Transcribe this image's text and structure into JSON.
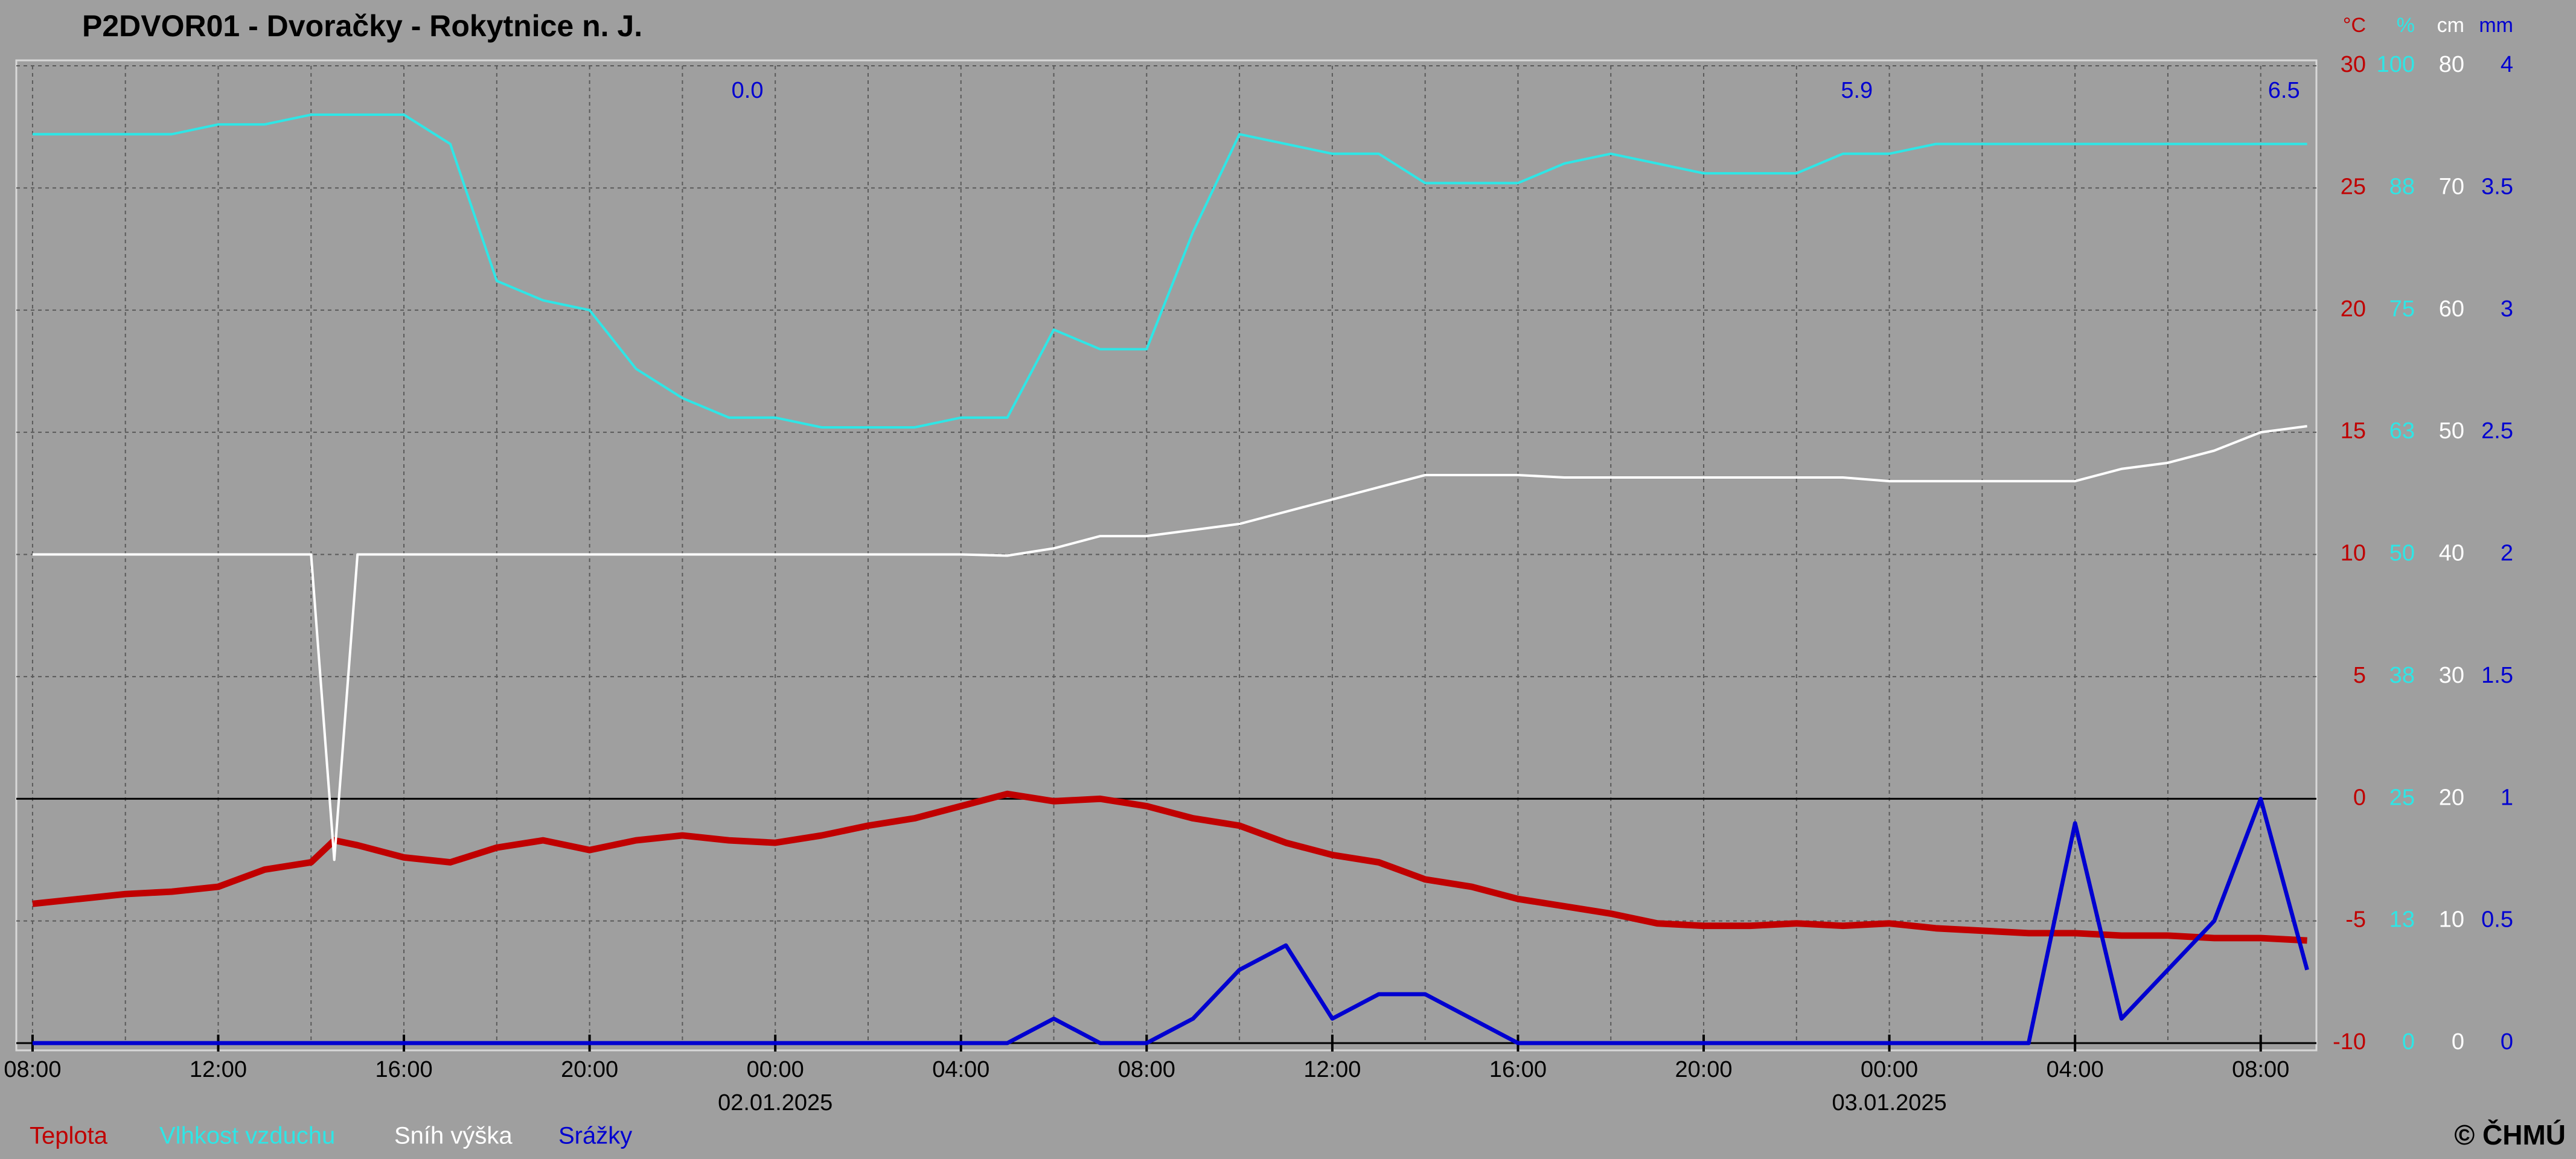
{
  "chart_data": {
    "type": "line",
    "title": "P2DVOR01 - Dvoračky - Rokytnice n. J.",
    "copyright": "© ČHMÚ",
    "x": [
      -16,
      -15,
      -14,
      -13,
      -12,
      -11,
      -10,
      -9.5,
      -9,
      -8,
      -7,
      -6,
      -5,
      -4,
      -3,
      -2,
      -1,
      0,
      1,
      2,
      3,
      4,
      5,
      6,
      7,
      8,
      9,
      10,
      11,
      12,
      13,
      14,
      15,
      16,
      17,
      18,
      19,
      20,
      21,
      22,
      23,
      24,
      25,
      26,
      27,
      28,
      29,
      30,
      31,
      32,
      33
    ],
    "xlim": [
      -16.35,
      33.2
    ],
    "xticks": [
      {
        "value": -16,
        "label": "08:00"
      },
      {
        "value": -12,
        "label": "12:00"
      },
      {
        "value": -8,
        "label": "16:00"
      },
      {
        "value": -4,
        "label": "20:00"
      },
      {
        "value": 0,
        "label": "00:00"
      },
      {
        "value": 4,
        "label": "04:00"
      },
      {
        "value": 8,
        "label": "08:00"
      },
      {
        "value": 12,
        "label": "12:00"
      },
      {
        "value": 16,
        "label": "16:00"
      },
      {
        "value": 20,
        "label": "20:00"
      },
      {
        "value": 24,
        "label": "00:00"
      },
      {
        "value": 28,
        "label": "04:00"
      },
      {
        "value": 32,
        "label": "08:00"
      }
    ],
    "xminorticks": [
      -14,
      -10,
      -6,
      -2,
      2,
      6,
      10,
      14,
      18,
      22,
      26,
      30
    ],
    "x_date_labels": [
      {
        "value": 0,
        "label": "02.01.2025"
      },
      {
        "value": 24,
        "label": "03.01.2025"
      }
    ],
    "grid": true,
    "y_axes": [
      {
        "unit": "°C",
        "lim": [
          -10,
          30
        ],
        "ticks": [
          -10,
          -5,
          0,
          5,
          10,
          15,
          20,
          25,
          30
        ]
      },
      {
        "unit": "%",
        "lim": [
          0,
          100
        ],
        "ticks": [
          0,
          {
            "value": 12.5,
            "label": "13"
          },
          25,
          {
            "value": 37.5,
            "label": "38"
          },
          50,
          {
            "value": 62.5,
            "label": "63"
          },
          75,
          {
            "value": 87.5,
            "label": "88"
          },
          100
        ]
      },
      {
        "unit": "cm",
        "lim": [
          0,
          80
        ],
        "ticks": [
          0,
          10,
          20,
          30,
          40,
          50,
          60,
          70,
          80
        ]
      },
      {
        "unit": "mm",
        "lim": [
          0,
          4
        ],
        "ticks": [
          0,
          0.5,
          1,
          1.5,
          2,
          2.5,
          3,
          3.5,
          4
        ]
      }
    ],
    "reference_line": {
      "axis": 0,
      "value": 0
    },
    "annotations": [
      {
        "x": -0.6,
        "text": "0.0"
      },
      {
        "x": 23.3,
        "text": "5.9"
      },
      {
        "x": 32.5,
        "text": "6.5"
      }
    ],
    "series": [
      {
        "name": "Teplota",
        "color": "#c00000",
        "axis": 0,
        "width": 4,
        "values": [
          -4.3,
          -4.1,
          -3.9,
          -3.8,
          -3.6,
          -2.9,
          -2.6,
          -1.7,
          -1.9,
          -2.4,
          -2.6,
          -2.0,
          -1.7,
          -2.1,
          -1.7,
          -1.5,
          -1.7,
          -1.8,
          -1.5,
          -1.1,
          -0.8,
          -0.3,
          0.2,
          -0.1,
          0.0,
          -0.3,
          -0.8,
          -1.1,
          -1.8,
          -2.3,
          -2.6,
          -3.3,
          -3.6,
          -4.1,
          -4.4,
          -4.7,
          -5.1,
          -5.2,
          -5.2,
          -5.1,
          -5.2,
          -5.1,
          -5.3,
          -5.4,
          -5.5,
          -5.5,
          -5.6,
          -5.6,
          -5.7,
          -5.7,
          -5.8
        ]
      },
      {
        "name": "Vlhkost vzduchu",
        "color": "#2ee6e6",
        "axis": 1,
        "width": 1.5,
        "values": [
          93,
          93,
          93,
          93,
          94,
          94,
          95,
          95,
          95,
          95,
          92,
          78,
          76,
          75,
          69,
          66,
          64,
          64,
          63,
          63,
          63,
          64,
          64,
          73,
          71,
          71,
          83,
          93,
          92,
          91,
          91,
          88,
          88,
          88,
          90,
          91,
          90,
          89,
          89,
          89,
          91,
          91,
          92,
          92,
          92,
          92,
          92,
          92,
          92,
          92,
          92
        ]
      },
      {
        "name": "Sníh výška",
        "color": "#ffffff",
        "axis": 2,
        "width": 1.5,
        "values": [
          40,
          40,
          40,
          40,
          40,
          40,
          40,
          15,
          40,
          40,
          40,
          40,
          40,
          40,
          40,
          40,
          40,
          40,
          40,
          40,
          40,
          40,
          39.9,
          40.5,
          41.5,
          41.5,
          42,
          42.5,
          43.5,
          44.5,
          45.5,
          46.5,
          46.5,
          46.5,
          46.3,
          46.3,
          46.3,
          46.3,
          46.3,
          46.3,
          46.3,
          46,
          46,
          46,
          46,
          46,
          47,
          47.5,
          48.5,
          50,
          50.5
        ]
      },
      {
        "name": "Srážky",
        "color": "#0000d0",
        "axis": 3,
        "width": 2.5,
        "values": [
          0,
          0,
          0,
          0,
          0,
          0,
          0,
          0,
          0,
          0,
          0,
          0,
          0,
          0,
          0,
          0,
          0,
          0,
          0,
          0,
          0,
          0,
          0,
          0.1,
          0,
          0,
          0.1,
          0.3,
          0.4,
          0.1,
          0.2,
          0.2,
          0.1,
          0,
          0,
          0,
          0,
          0,
          0,
          0,
          0,
          0,
          0,
          0,
          0,
          0.9,
          0.1,
          0.3,
          0.5,
          1.0,
          0.3
        ]
      }
    ]
  }
}
